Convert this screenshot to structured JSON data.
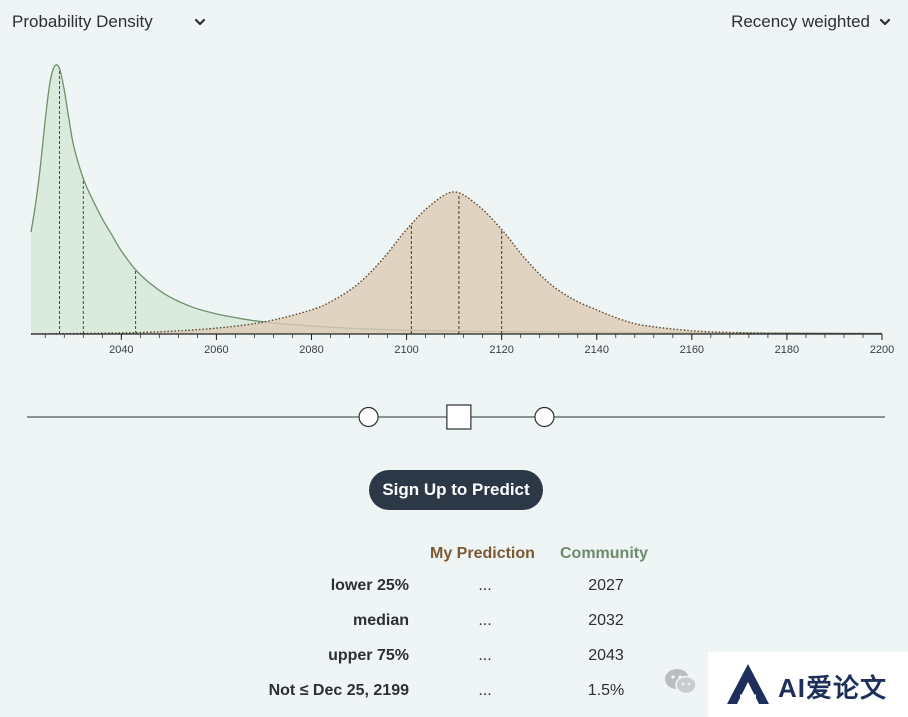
{
  "header": {
    "density_dropdown": "Probability Density",
    "weighting_dropdown": "Recency weighted"
  },
  "chart_data": {
    "type": "area",
    "x_axis": {
      "range": [
        2021,
        2200
      ],
      "tick_labels": [
        "2040",
        "2060",
        "2080",
        "2100",
        "2120",
        "2140",
        "2160",
        "2180",
        "2200"
      ],
      "minor_tick_step": 4
    },
    "series": [
      {
        "color": "#6f8f6a",
        "fill": "#d8e9db",
        "line_style": "solid",
        "x": [
          2021,
          2022,
          2023,
          2024,
          2025,
          2026,
          2027,
          2028,
          2029,
          2030,
          2032,
          2034,
          2036,
          2038,
          2040,
          2043,
          2046,
          2050,
          2055,
          2060,
          2065,
          2070,
          2080,
          2090,
          2100,
          2120,
          2140,
          2160,
          2180,
          2200
        ],
        "y": [
          0.38,
          0.49,
          0.63,
          0.8,
          0.94,
          1.0,
          0.99,
          0.91,
          0.8,
          0.7,
          0.58,
          0.5,
          0.43,
          0.37,
          0.31,
          0.24,
          0.19,
          0.14,
          0.1,
          0.075,
          0.058,
          0.045,
          0.03,
          0.02,
          0.014,
          0.009,
          0.006,
          0.004,
          0.003,
          0.002
        ],
        "quartile_markers": [
          2027,
          2032,
          2043
        ]
      },
      {
        "color": "#5a4630",
        "fill": "#dccab5",
        "line_style": "dotted",
        "x": [
          2021,
          2040,
          2050,
          2060,
          2070,
          2080,
          2085,
          2090,
          2095,
          2100,
          2105,
          2110,
          2115,
          2120,
          2125,
          2130,
          2135,
          2140,
          2145,
          2150,
          2160,
          2170,
          2180,
          2190,
          2200
        ],
        "y": [
          0.0,
          0.004,
          0.01,
          0.022,
          0.045,
          0.09,
          0.13,
          0.19,
          0.28,
          0.39,
          0.48,
          0.53,
          0.48,
          0.39,
          0.28,
          0.19,
          0.13,
          0.09,
          0.055,
          0.032,
          0.012,
          0.005,
          0.002,
          0.001,
          0.001
        ],
        "quartile_markers": [
          2101,
          2111,
          2120
        ]
      }
    ]
  },
  "slider": {
    "handles": [
      2092,
      2111,
      2129
    ]
  },
  "cta": {
    "signup_label": "Sign Up to Predict"
  },
  "stats": {
    "headers": {
      "mine": "My Prediction",
      "community": "Community"
    },
    "rows": [
      {
        "label": "lower 25%",
        "mine": "...",
        "community": "2027"
      },
      {
        "label": "median",
        "mine": "...",
        "community": "2032"
      },
      {
        "label": "upper 75%",
        "mine": "...",
        "community": "2043"
      },
      {
        "label": "Not ≤ Dec 25, 2199",
        "mine": "...",
        "community": "1.5%"
      }
    ]
  },
  "watermark": {
    "text": "AI爱论文",
    "icon": "wechat-icon"
  }
}
